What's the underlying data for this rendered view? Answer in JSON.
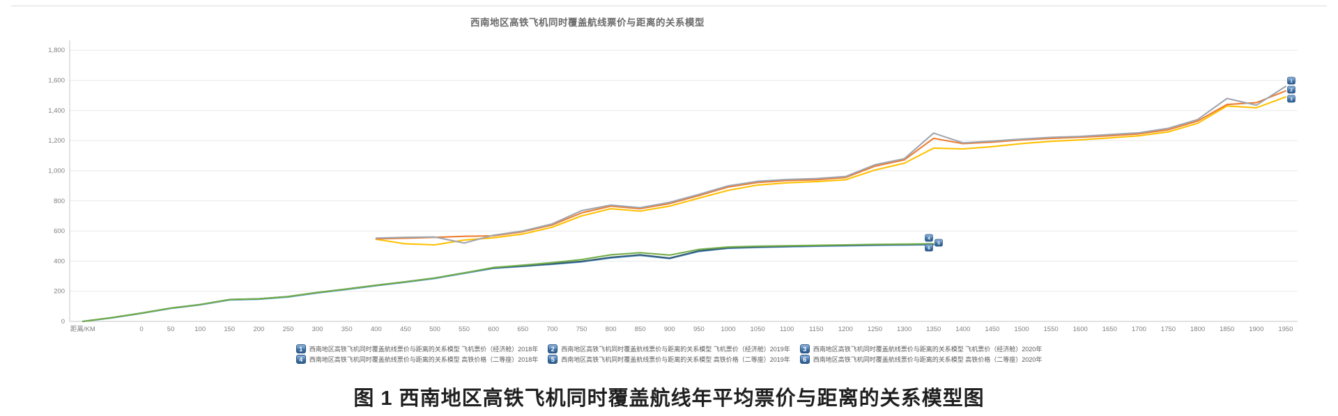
{
  "title": "西南地区高铁飞机同时覆盖航线票价与距离的关系模型",
  "caption": "图 1 西南地区高铁飞机同时覆盖航线年平均票价与距离的关系模型图",
  "chart_data": {
    "type": "line",
    "title": "西南地区高铁飞机同时覆盖航线票价与距离的关系模型",
    "x_axis": {
      "label": "距离/KM",
      "tick_start": 0,
      "tick_end": 1950,
      "tick_step": 50
    },
    "y_axis": {
      "min": 0,
      "max": 1800,
      "step": 200,
      "tick_labels": [
        "0",
        "200",
        "400",
        "600",
        "800",
        "1,000",
        "1,200",
        "1,400",
        "1,600",
        "1,800"
      ]
    },
    "grid": true,
    "legend_position": "bottom",
    "x_step": 50,
    "draw_order": [
      4,
      3,
      5,
      2,
      1,
      0
    ],
    "series": [
      {
        "legend_num": "1",
        "name": "西南地区高铁飞机同时覆盖航线票价与距离的关系模型 飞机票价（经济舱）2018年",
        "color": "#a0a5ad",
        "x_start": 400,
        "values": [
          553,
          558,
          560,
          520,
          572,
          600,
          647,
          735,
          772,
          755,
          790,
          843,
          900,
          930,
          942,
          948,
          962,
          1040,
          1080,
          1250,
          1185,
          1197,
          1210,
          1222,
          1228,
          1240,
          1252,
          1282,
          1340,
          1480,
          1435,
          1560
        ]
      },
      {
        "legend_num": "2",
        "name": "西南地区高铁飞机同时覆盖航线票价与距离的关系模型 飞机票价（经济舱）2019年",
        "color": "#ed7d31",
        "x_start": 400,
        "values": [
          548,
          552,
          558,
          565,
          568,
          595,
          640,
          720,
          765,
          748,
          782,
          835,
          892,
          922,
          935,
          940,
          955,
          1030,
          1072,
          1215,
          1180,
          1190,
          1205,
          1215,
          1222,
          1232,
          1245,
          1272,
          1330,
          1440,
          1452,
          1530
        ]
      },
      {
        "legend_num": "3",
        "name": "西南地区高铁飞机同时覆盖航线票价与距离的关系模型 飞机票价（经济舱）2020年",
        "color": "#ffc000",
        "x_start": 400,
        "values": [
          545,
          515,
          508,
          540,
          555,
          580,
          625,
          700,
          748,
          732,
          765,
          818,
          870,
          905,
          920,
          928,
          940,
          1005,
          1050,
          1150,
          1145,
          1160,
          1180,
          1195,
          1205,
          1218,
          1232,
          1258,
          1315,
          1430,
          1418,
          1490
        ]
      },
      {
        "legend_num": "4",
        "name": "西南地区高铁飞机同时覆盖航线票价与距离的关系模型 高铁价格（二等座）2018年",
        "color": "#315a74",
        "x_start": -100,
        "values": [
          0,
          25,
          55,
          88,
          112,
          145,
          150,
          165,
          192,
          215,
          240,
          263,
          288,
          322,
          355,
          368,
          382,
          398,
          425,
          442,
          420,
          468,
          488,
          494,
          498,
          502,
          505,
          508,
          510,
          512
        ]
      },
      {
        "legend_num": "5",
        "name": "西南地区高铁飞机同时覆盖航线票价与距离的关系模型 高铁价格（二等座）2019年",
        "color": "#5b9bd5",
        "x_start": -100,
        "values": [
          0,
          23,
          53,
          86,
          110,
          142,
          147,
          162,
          189,
          212,
          237,
          260,
          285,
          319,
          352,
          365,
          379,
          395,
          421,
          438,
          417,
          464,
          485,
          491,
          495,
          499,
          502,
          505,
          507,
          509
        ]
      },
      {
        "legend_num": "6",
        "name": "西南地区高铁飞机同时覆盖航线票价与距离的关系模型 高铁价格（二等座）2020年",
        "color": "#70ad47",
        "x_start": -100,
        "values": [
          0,
          25,
          55,
          88,
          112,
          145,
          150,
          165,
          192,
          215,
          240,
          263,
          288,
          322,
          358,
          373,
          390,
          410,
          442,
          456,
          440,
          478,
          494,
          499,
          502,
          505,
          508,
          511,
          513,
          515
        ]
      }
    ]
  }
}
